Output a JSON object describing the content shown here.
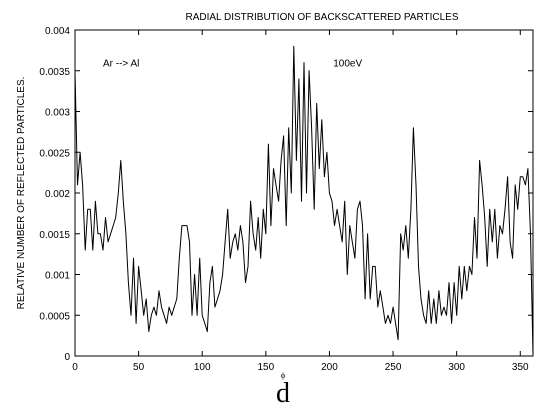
{
  "chart_data": {
    "type": "line",
    "title": "RADIAL DISTRIBUTION OF BACKSCATTERED PARTICLES",
    "xlabel": "d",
    "xlabel_sub": "ϕ",
    "ylabel": "RELATIVE NUMBER OF REFLECTED PARTICLES.",
    "xlim": [
      0,
      360
    ],
    "ylim": [
      0,
      0.004
    ],
    "x_ticks": [
      "0",
      "50",
      "100",
      "150",
      "200",
      "250",
      "300",
      "350"
    ],
    "y_ticks": [
      "0",
      "0.0005",
      "0.001",
      "0.0015",
      "0.002",
      "0.0025",
      "0.003",
      "0.0035",
      "0.004"
    ],
    "grid": false,
    "annotations": [
      {
        "text": "Ar --> Al",
        "x": 22,
        "y": 0.0036
      },
      {
        "text": "100eV",
        "x": 203,
        "y": 0.0036
      }
    ],
    "series": [
      {
        "x": [
          0,
          2,
          4,
          6,
          8,
          10,
          12,
          14,
          16,
          18,
          20,
          22,
          24,
          26,
          28,
          30,
          32,
          34,
          36,
          38,
          40,
          42,
          44,
          46,
          48,
          50,
          52,
          54,
          56,
          58,
          60,
          62,
          64,
          66,
          68,
          70,
          72,
          74,
          76,
          78,
          80,
          82,
          84,
          86,
          88,
          90,
          92,
          94,
          96,
          98,
          100,
          102,
          104,
          106,
          108,
          110,
          112,
          114,
          116,
          118,
          120,
          122,
          124,
          126,
          128,
          130,
          132,
          134,
          136,
          138,
          140,
          142,
          144,
          146,
          148,
          150,
          152,
          154,
          156,
          158,
          160,
          162,
          164,
          166,
          168,
          170,
          172,
          174,
          176,
          178,
          180,
          182,
          184,
          186,
          188,
          190,
          192,
          194,
          196,
          198,
          200,
          202,
          204,
          206,
          208,
          210,
          212,
          214,
          216,
          218,
          220,
          222,
          224,
          226,
          228,
          230,
          232,
          234,
          236,
          238,
          240,
          242,
          244,
          246,
          248,
          250,
          252,
          254,
          256,
          258,
          260,
          262,
          264,
          266,
          268,
          270,
          272,
          274,
          276,
          278,
          280,
          282,
          284,
          286,
          288,
          290,
          292,
          294,
          296,
          298,
          300,
          302,
          304,
          306,
          308,
          310,
          312,
          314,
          316,
          318,
          320,
          322,
          324,
          326,
          328,
          330,
          332,
          334,
          336,
          338,
          340,
          342,
          344,
          346,
          348,
          350,
          352,
          354,
          356,
          358,
          360
        ],
        "y": [
          0.0035,
          0.0021,
          0.0025,
          0.0021,
          0.0013,
          0.0018,
          0.0018,
          0.0013,
          0.0019,
          0.0015,
          0.0015,
          0.0013,
          0.0017,
          0.0014,
          0.0015,
          0.0016,
          0.0017,
          0.002,
          0.0024,
          0.0019,
          0.0015,
          0.0009,
          0.0005,
          0.0012,
          0.0004,
          0.0011,
          0.0008,
          0.0005,
          0.0007,
          0.0003,
          0.0005,
          0.0006,
          0.0005,
          0.0008,
          0.0006,
          0.0005,
          0.0004,
          0.0006,
          0.0005,
          0.0006,
          0.0007,
          0.0012,
          0.0016,
          0.0016,
          0.0016,
          0.0014,
          0.0005,
          0.001,
          0.0005,
          0.0012,
          0.0005,
          0.0004,
          0.0003,
          0.0009,
          0.0011,
          0.0006,
          0.0007,
          0.0008,
          0.001,
          0.0014,
          0.0018,
          0.0012,
          0.0014,
          0.0015,
          0.0013,
          0.0016,
          0.0014,
          0.0009,
          0.0011,
          0.0019,
          0.0015,
          0.0013,
          0.0017,
          0.0012,
          0.0018,
          0.0015,
          0.0026,
          0.0016,
          0.0023,
          0.0021,
          0.0019,
          0.0024,
          0.0027,
          0.0016,
          0.0028,
          0.002,
          0.0038,
          0.0024,
          0.0034,
          0.0019,
          0.0036,
          0.002,
          0.0035,
          0.0028,
          0.0018,
          0.0031,
          0.0023,
          0.0029,
          0.0022,
          0.0025,
          0.002,
          0.0019,
          0.0016,
          0.0018,
          0.0016,
          0.0014,
          0.0019,
          0.001,
          0.0016,
          0.0014,
          0.0012,
          0.0018,
          0.0019,
          0.0016,
          0.0007,
          0.0015,
          0.0007,
          0.0011,
          0.0011,
          0.0006,
          0.0008,
          0.0006,
          0.0004,
          0.0005,
          0.0004,
          0.0006,
          0.0004,
          0.0002,
          0.0015,
          0.0013,
          0.0016,
          0.0012,
          0.0018,
          0.0028,
          0.0021,
          0.0011,
          0.0007,
          0.0005,
          0.0004,
          0.0008,
          0.0004,
          0.0007,
          0.0004,
          0.0008,
          0.0005,
          0.0006,
          0.0005,
          0.0009,
          0.0004,
          0.0009,
          0.0005,
          0.0011,
          0.0007,
          0.0011,
          0.0008,
          0.0011,
          0.001,
          0.0017,
          0.0012,
          0.0024,
          0.0021,
          0.0017,
          0.0011,
          0.0018,
          0.0014,
          0.0018,
          0.0012,
          0.0016,
          0.0015,
          0.0018,
          0.0022,
          0.0014,
          0.0012,
          0.0021,
          0.0018,
          0.0022,
          0.0022,
          0.0021,
          0.0023,
          0.0015,
          0.0
        ]
      }
    ]
  }
}
